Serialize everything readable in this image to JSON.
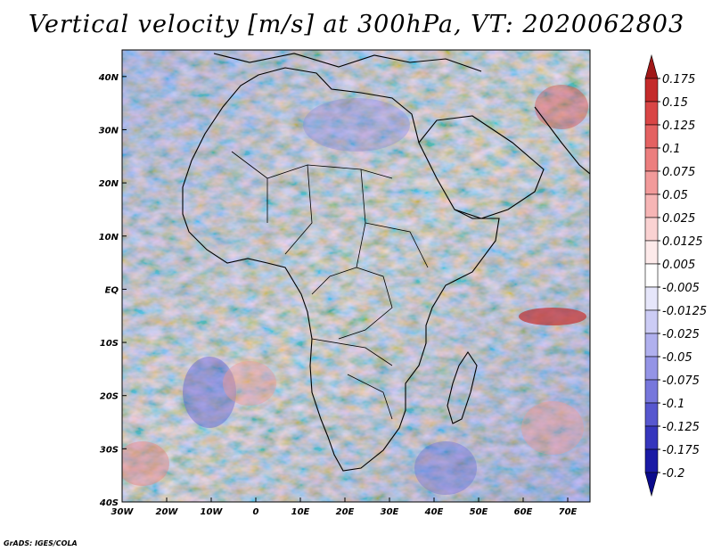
{
  "title": "Vertical velocity [m/s] at 300hPa, VT: 2020062803",
  "footer": "GrADS: IGES/COLA",
  "map": {
    "lon_range": [
      -30,
      75
    ],
    "lat_range": [
      -40,
      45
    ],
    "lon_ticks": [
      "30W",
      "20W",
      "10W",
      "0",
      "10E",
      "20E",
      "30E",
      "40E",
      "50E",
      "60E",
      "70E"
    ],
    "lat_ticks": [
      "40S",
      "30S",
      "20S",
      "10S",
      "EQ",
      "10N",
      "20N",
      "30N",
      "40N"
    ]
  },
  "colorbar": {
    "labels": [
      "0.175",
      "0.15",
      "0.125",
      "0.1",
      "0.075",
      "0.05",
      "0.025",
      "0.0125",
      "0.005",
      "-0.005",
      "-0.0125",
      "-0.025",
      "-0.05",
      "-0.075",
      "-0.1",
      "-0.125",
      "-0.175",
      "-0.2"
    ],
    "colors": [
      "#a01818",
      "#c42a2a",
      "#d94646",
      "#e46262",
      "#ec7e7e",
      "#f29a9a",
      "#f6b5b5",
      "#fad2d2",
      "#fdeaea",
      "#ffffff",
      "#e6e6fa",
      "#ccccf5",
      "#b0b0ee",
      "#9494e6",
      "#7777dc",
      "#5757cf",
      "#3636bd",
      "#1a1aa5",
      "#0a0a8c"
    ]
  }
}
